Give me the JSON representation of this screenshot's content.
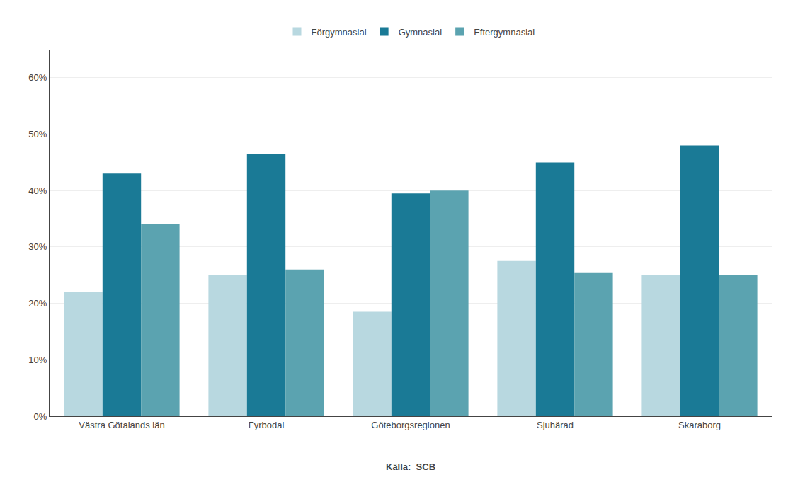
{
  "chart_data": {
    "type": "bar",
    "categories": [
      "Västra Götalands län",
      "Fyrbodal",
      "Göteborgsregionen",
      "Sjuhärad",
      "Skaraborg"
    ],
    "series": [
      {
        "name": "Förgymnasial",
        "color": "#b8d8e0",
        "values": [
          22,
          25,
          18.5,
          27.5,
          25
        ]
      },
      {
        "name": "Gymnasial",
        "color": "#1a7a96",
        "values": [
          43,
          46.5,
          39.5,
          45,
          48
        ]
      },
      {
        "name": "Eftergymnasial",
        "color": "#5ba3b0",
        "values": [
          34,
          26,
          40,
          25.5,
          25
        ]
      }
    ],
    "ylim": [
      0,
      65
    ],
    "yticks": [
      {
        "value": 0,
        "label": "0%"
      },
      {
        "value": 10,
        "label": "10%"
      },
      {
        "value": 20,
        "label": "20%"
      },
      {
        "value": 30,
        "label": "30%"
      },
      {
        "value": 40,
        "label": "40%"
      },
      {
        "value": 50,
        "label": "50%"
      },
      {
        "value": 60,
        "label": "60%"
      }
    ],
    "grid": true,
    "legend": "top",
    "annotations": [
      "Källa:  SCB"
    ]
  }
}
